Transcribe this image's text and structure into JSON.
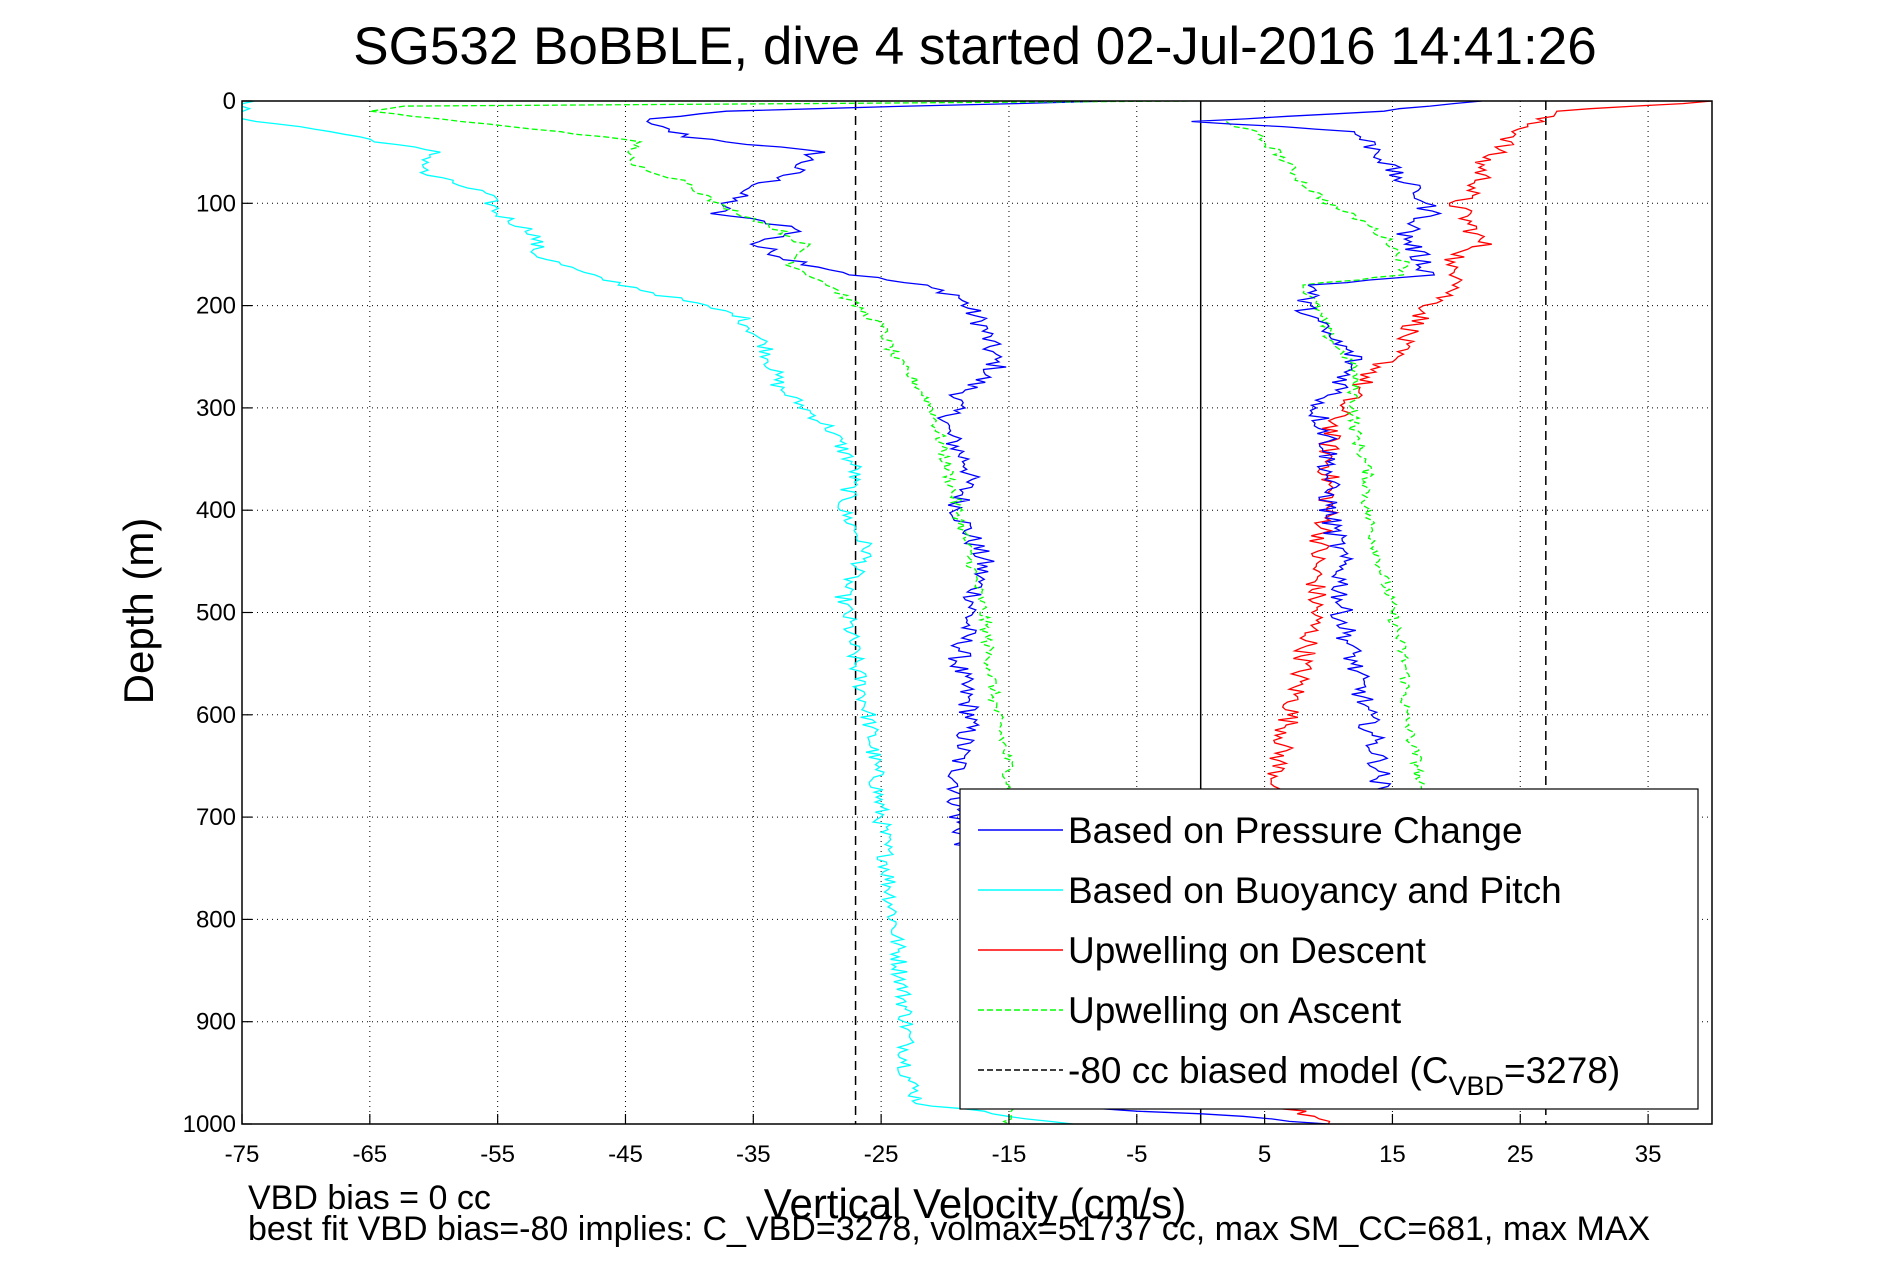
{
  "chart_data": {
    "type": "line",
    "title": "SG532 BoBBLE, dive 4 started 02-Jul-2016 14:41:26",
    "xlabel": "Vertical Velocity (cm/s)",
    "ylabel": "Depth (m)",
    "xlim": [
      -75,
      40
    ],
    "ylim": [
      1000,
      0
    ],
    "y_reversed": true,
    "grid": true,
    "legend_position": "bottom-right",
    "xticks": [
      -75,
      -65,
      -55,
      -45,
      -35,
      -25,
      -15,
      -5,
      5,
      15,
      25,
      35
    ],
    "yticks": [
      0,
      100,
      200,
      300,
      400,
      500,
      600,
      700,
      800,
      900,
      1000
    ],
    "reference_lines": [
      {
        "x": -27,
        "style": "dashed",
        "color": "#000000"
      },
      {
        "x": 0,
        "style": "solid",
        "color": "#000000"
      },
      {
        "x": 27,
        "style": "dashed",
        "color": "#000000"
      }
    ],
    "series": [
      {
        "name": "Based on Pressure Change",
        "color": "#0000ff",
        "style": "solid",
        "noise": 0.9,
        "points": [
          [
            -7,
            0
          ],
          [
            -38,
            10
          ],
          [
            -44,
            20
          ],
          [
            -40,
            35
          ],
          [
            -30,
            50
          ],
          [
            -32,
            70
          ],
          [
            -36,
            90
          ],
          [
            -38,
            110
          ],
          [
            -31,
            125
          ],
          [
            -35,
            140
          ],
          [
            -32,
            155
          ],
          [
            -27,
            170
          ],
          [
            -22,
            180
          ],
          [
            -19,
            190
          ],
          [
            -17,
            220
          ],
          [
            -16,
            260
          ],
          [
            -19,
            290
          ],
          [
            -20,
            320
          ],
          [
            -18,
            360
          ],
          [
            -19,
            400
          ],
          [
            -17,
            450
          ],
          [
            -18,
            500
          ],
          [
            -19,
            550
          ],
          [
            -18,
            600
          ],
          [
            -19,
            650
          ],
          [
            -19,
            700
          ],
          [
            -17,
            800
          ],
          [
            -17,
            900
          ],
          [
            -17,
            980
          ],
          [
            0,
            990
          ],
          [
            10,
            1000
          ]
        ]
      },
      {
        "name": "Based on Buoyancy and Pitch",
        "color": "#00ffff",
        "style": "solid",
        "noise": 0.7,
        "points": [
          [
            -74,
            0
          ],
          [
            -76,
            15
          ],
          [
            -68,
            30
          ],
          [
            -60,
            50
          ],
          [
            -61,
            70
          ],
          [
            -56,
            90
          ],
          [
            -55,
            110
          ],
          [
            -52,
            130
          ],
          [
            -52,
            150
          ],
          [
            -48,
            170
          ],
          [
            -42,
            190
          ],
          [
            -36,
            210
          ],
          [
            -34,
            240
          ],
          [
            -33,
            280
          ],
          [
            -29,
            320
          ],
          [
            -27,
            360
          ],
          [
            -28,
            400
          ],
          [
            -26,
            440
          ],
          [
            -28,
            480
          ],
          [
            -27,
            550
          ],
          [
            -26,
            600
          ],
          [
            -25,
            700
          ],
          [
            -24,
            800
          ],
          [
            -23,
            900
          ],
          [
            -23,
            950
          ],
          [
            -22,
            980
          ],
          [
            -10,
            1000
          ]
        ]
      },
      {
        "name": "Upwelling on Descent",
        "color": "#ff0000",
        "style": "solid",
        "noise": 0.9,
        "points": [
          [
            40,
            0
          ],
          [
            28,
            10
          ],
          [
            26,
            20
          ],
          [
            24,
            40
          ],
          [
            22,
            60
          ],
          [
            22,
            80
          ],
          [
            20,
            100
          ],
          [
            21,
            120
          ],
          [
            22,
            140
          ],
          [
            19,
            160
          ],
          [
            21,
            175
          ],
          [
            18,
            200
          ],
          [
            16,
            230
          ],
          [
            15,
            250
          ],
          [
            13,
            270
          ],
          [
            11,
            300
          ],
          [
            10,
            330
          ],
          [
            10,
            360
          ],
          [
            10,
            400
          ],
          [
            9,
            450
          ],
          [
            9,
            500
          ],
          [
            8,
            550
          ],
          [
            7,
            600
          ],
          [
            6,
            650
          ],
          [
            6,
            700
          ],
          [
            6,
            800
          ],
          [
            6,
            900
          ],
          [
            6,
            980
          ],
          [
            10,
            1000
          ]
        ]
      },
      {
        "name": "Upwelling on Ascent",
        "color": "#00ff00",
        "style": "dashed",
        "noise": 0.5,
        "points": [
          [
            -1,
            0
          ],
          [
            -62,
            5
          ],
          [
            -65,
            10
          ],
          [
            -58,
            20
          ],
          [
            -50,
            30
          ],
          [
            -44,
            40
          ],
          [
            -45,
            60
          ],
          [
            -40,
            80
          ],
          [
            -38,
            100
          ],
          [
            -34,
            120
          ],
          [
            -31,
            140
          ],
          [
            -32,
            160
          ],
          [
            -29,
            180
          ],
          [
            -27,
            200
          ],
          [
            -25,
            220
          ],
          [
            -24,
            250
          ],
          [
            -22,
            280
          ],
          [
            -21,
            300
          ],
          [
            -20,
            350
          ],
          [
            -19,
            400
          ],
          [
            -18,
            450
          ],
          [
            -17,
            500
          ],
          [
            -16,
            600
          ],
          [
            -15,
            650
          ],
          [
            -15,
            700
          ],
          [
            -15,
            800
          ],
          [
            -15,
            900
          ],
          [
            -15,
            1000
          ]
        ]
      },
      {
        "name": "Upwelling on Ascent",
        "color": "#00ff00",
        "style": "dashed",
        "noise": 0.5,
        "points": [
          [
            2,
            20
          ],
          [
            4,
            30
          ],
          [
            6,
            50
          ],
          [
            8,
            80
          ],
          [
            10,
            100
          ],
          [
            13,
            120
          ],
          [
            15,
            140
          ],
          [
            16,
            160
          ],
          [
            16,
            170
          ],
          [
            8,
            180
          ],
          [
            9,
            200
          ],
          [
            10,
            230
          ],
          [
            12,
            260
          ],
          [
            12,
            280
          ],
          [
            12,
            320
          ],
          [
            13,
            360
          ],
          [
            13,
            400
          ],
          [
            14,
            450
          ],
          [
            15,
            500
          ],
          [
            16,
            550
          ],
          [
            16,
            600
          ],
          [
            17,
            650
          ],
          [
            17,
            700
          ]
        ]
      },
      {
        "name": "Based on Pressure Change",
        "color": "#0000ff",
        "style": "solid",
        "noise": 0.9,
        "points": [
          [
            22,
            0
          ],
          [
            14,
            10
          ],
          [
            0,
            20
          ],
          [
            12,
            30
          ],
          [
            14,
            50
          ],
          [
            15,
            70
          ],
          [
            17,
            90
          ],
          [
            18,
            110
          ],
          [
            16,
            130
          ],
          [
            17,
            150
          ],
          [
            18,
            170
          ],
          [
            9,
            180
          ],
          [
            8,
            200
          ],
          [
            10,
            230
          ],
          [
            12,
            250
          ],
          [
            11,
            280
          ],
          [
            9,
            300
          ],
          [
            10,
            330
          ],
          [
            10,
            360
          ],
          [
            10,
            400
          ],
          [
            11,
            450
          ],
          [
            11,
            500
          ],
          [
            12,
            550
          ],
          [
            13,
            600
          ],
          [
            14,
            650
          ],
          [
            14,
            700
          ]
        ]
      }
    ],
    "legend": [
      {
        "label": "Based on Pressure Change",
        "color": "#0000ff",
        "style": "solid"
      },
      {
        "label": "Based on Buoyancy and Pitch",
        "color": "#00ffff",
        "style": "solid"
      },
      {
        "label": "Upwelling on Descent",
        "color": "#ff0000",
        "style": "solid"
      },
      {
        "label": "Upwelling on Ascent",
        "color": "#00ff00",
        "style": "dashed"
      },
      {
        "label": "-80 cc biased model (C",
        "sub": "VBD",
        "tail": "=3278)",
        "color": "#000000",
        "style": "dashed"
      }
    ]
  },
  "footer": {
    "line1": "VBD bias = 0 cc",
    "line2": "best fit VBD bias=-80 implies: C_VBD=3278, volmax=51737 cc, max SM_CC=681, max MAX"
  }
}
